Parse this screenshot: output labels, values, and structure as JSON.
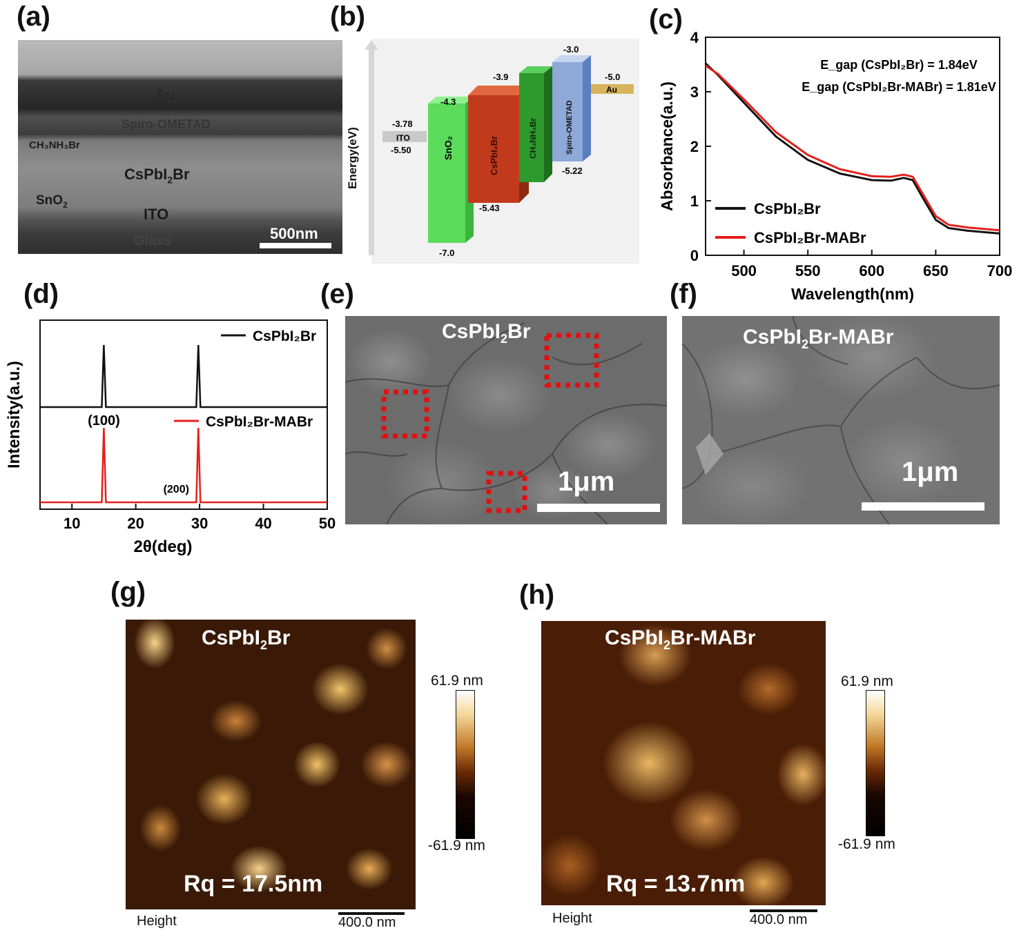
{
  "panel_labels": {
    "a": "(a)",
    "b": "(b)",
    "c": "(c)",
    "d": "(d)",
    "e": "(e)",
    "f": "(f)",
    "g": "(g)",
    "h": "(h)"
  },
  "a": {
    "au": "Au",
    "spiro": "Spiro-OMETAD",
    "ch3nh3br": "CH₃NH₃Br",
    "cspbi2br_main": "CsPbI",
    "cspbi2br_sub": "2",
    "cspbi2br_tail": "Br",
    "sno2_main": "SnO",
    "sno2_sub": "2",
    "ito": "ITO",
    "glass": "Glass",
    "scalebar": "500nm"
  },
  "b": {
    "ylabel": "Energy(eV)",
    "ito": {
      "name": "ITO",
      "top": "-3.78",
      "bottom": "-5.50",
      "color": "#c9c9c9"
    },
    "sno2": {
      "name": "SnO₂",
      "top": "-4.3",
      "bottom": "-7.0",
      "color": "#5bdc5b"
    },
    "cspbi2br": {
      "name": "CsPbI₂Br",
      "top": "-3.9",
      "bottom": "-5.43",
      "color": "#c23a1c"
    },
    "ch3nh3br": {
      "name": "CH₃NH₃Br",
      "color": "#2e9a2e"
    },
    "spiro": {
      "name": "Spiro-OMETAD",
      "top": "-3.0",
      "bottom": "-5.22",
      "color": "#8ea9d8"
    },
    "au": {
      "name": "Au",
      "top": "-5.0",
      "color": "#d8b45c"
    }
  },
  "chart_data": [
    {
      "panel": "c",
      "type": "line",
      "xlabel": "Wavelength(nm)",
      "ylabel": "Absorbance(a.u.)",
      "xlim": [
        470,
        700
      ],
      "ylim": [
        0,
        4
      ],
      "xticks": [
        "500",
        "550",
        "600",
        "650",
        "700"
      ],
      "yticks": [
        "0",
        "1",
        "2",
        "3",
        "4"
      ],
      "annotations": [
        "E_gap (CsPbI₂Br) = 1.84eV",
        "E_gap (CsPbI₂Br-MABr) = 1.81eV"
      ],
      "legend_position": "bottom-left",
      "series": [
        {
          "name": "CsPbI₂Br",
          "color": "#111111",
          "x": [
            470,
            480,
            500,
            525,
            550,
            575,
            600,
            615,
            625,
            632,
            640,
            650,
            660,
            675,
            700
          ],
          "y": [
            3.52,
            3.3,
            2.8,
            2.18,
            1.75,
            1.5,
            1.38,
            1.37,
            1.42,
            1.38,
            1.05,
            0.65,
            0.5,
            0.45,
            0.4
          ]
        },
        {
          "name": "CsPbI₂Br-MABr",
          "color": "#e3201b",
          "x": [
            470,
            480,
            500,
            525,
            550,
            575,
            600,
            615,
            625,
            632,
            640,
            650,
            660,
            675,
            700
          ],
          "y": [
            3.48,
            3.32,
            2.86,
            2.26,
            1.84,
            1.58,
            1.45,
            1.44,
            1.48,
            1.44,
            1.12,
            0.72,
            0.56,
            0.51,
            0.46
          ]
        }
      ]
    },
    {
      "panel": "d",
      "type": "line",
      "xlabel": "2θ(deg)",
      "ylabel": "Intensity(a.u.)",
      "xlim": [
        5,
        50
      ],
      "xticks": [
        "10",
        "20",
        "30",
        "40",
        "50"
      ],
      "peak_labels": [
        "(100)",
        "(200)"
      ],
      "peaks_deg": [
        15.0,
        29.8
      ],
      "series": [
        {
          "name": "CsPbI₂Br",
          "color": "#111111"
        },
        {
          "name": "CsPbI₂Br-MABr",
          "color": "#e3201b"
        }
      ]
    }
  ],
  "e": {
    "title_main": "CsPbI",
    "title_sub": "2",
    "title_tail": "Br",
    "scalebar": "1μm"
  },
  "f": {
    "title_main": "CsPbI",
    "title_sub": "2",
    "title_tail": "Br-MABr",
    "scalebar": "1μm"
  },
  "g": {
    "title_main": "CsPbI",
    "title_sub": "2",
    "title_tail": "Br",
    "rq": "Rq = 17.5nm",
    "cb_top": "61.9 nm",
    "cb_bottom": "-61.9 nm",
    "height_label": "Height",
    "scalebar": "400.0 nm"
  },
  "h": {
    "title_main": "CsPbI",
    "title_sub": "2",
    "title_tail": "Br-MABr",
    "rq": "Rq = 13.7nm",
    "cb_top": "61.9 nm",
    "cb_bottom": "-61.9 nm",
    "height_label": "Height",
    "scalebar": "400.0 nm"
  }
}
